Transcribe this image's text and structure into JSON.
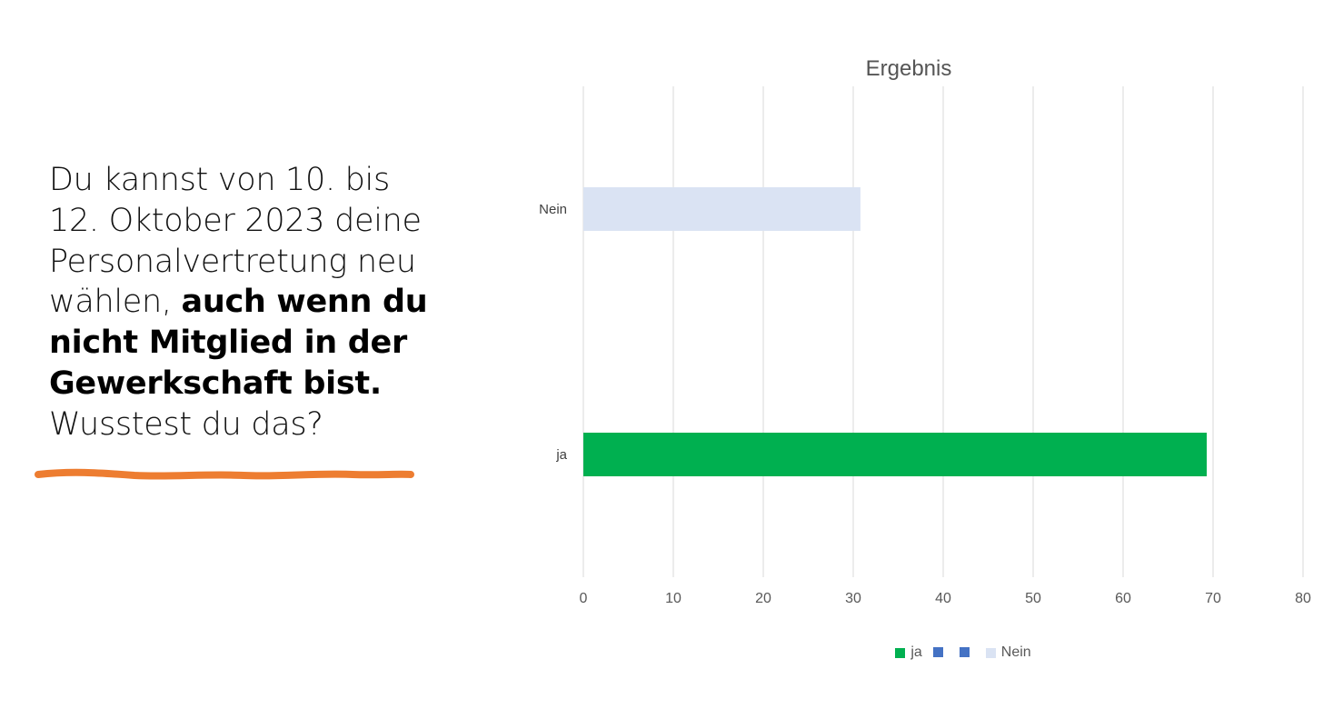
{
  "question": {
    "text_plain_1": "Du kannst von 10. bis 12. Oktober 2023 deine Personalvertretung neu wählen, ",
    "text_bold": "auch wenn du nicht Mitglied in der Gewerkschaft bist.",
    "text_plain_2": " Wusstest du das?"
  },
  "colors": {
    "ja": "#00b050",
    "nein": "#dae3f3",
    "legend_blank": "#4472c4",
    "underline": "#ed7d31",
    "grid": "#d9d9d9"
  },
  "chart_data": {
    "type": "bar",
    "orientation": "horizontal",
    "title": "Ergebnis",
    "categories": [
      "ja",
      "Nein"
    ],
    "values": [
      69.3,
      30.8
    ],
    "xlim": [
      0,
      80
    ],
    "xticks": [
      "0",
      "10",
      "20",
      "30",
      "40",
      "50",
      "60",
      "70",
      "80"
    ],
    "grid": "vertical",
    "legend_position": "bottom",
    "legend": [
      {
        "label": "ja",
        "color": "#00b050"
      },
      {
        "label": "",
        "color": "#4472c4"
      },
      {
        "label": "",
        "color": "#4472c4"
      },
      {
        "label": "Nein",
        "color": "#dae3f3"
      }
    ]
  }
}
